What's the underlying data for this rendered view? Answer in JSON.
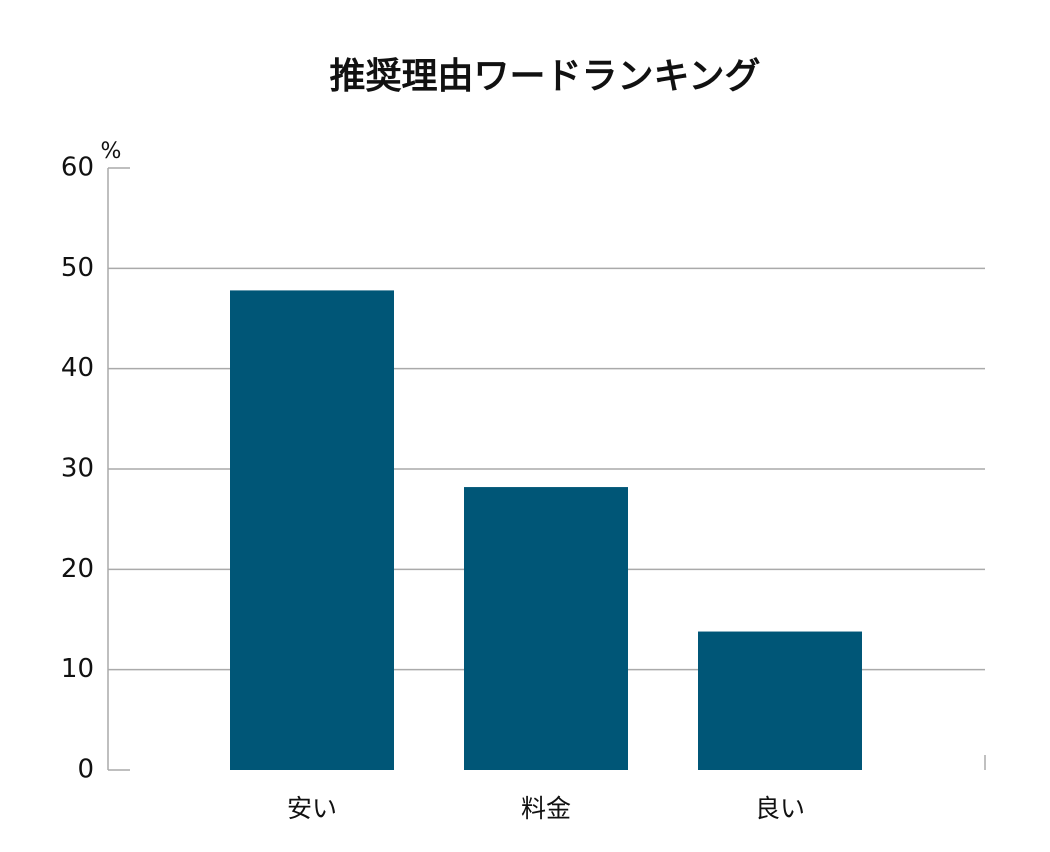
{
  "chart_data": {
    "type": "bar",
    "title": "推奨理由ワードランキング",
    "y_unit": "%",
    "categories": [
      "安い",
      "料金",
      "良い"
    ],
    "values": [
      47.8,
      28.2,
      13.8
    ],
    "color": "#005677",
    "ylim": [
      0,
      60
    ],
    "yticks": [
      0,
      10,
      20,
      30,
      40,
      50,
      60
    ],
    "grid": true
  }
}
